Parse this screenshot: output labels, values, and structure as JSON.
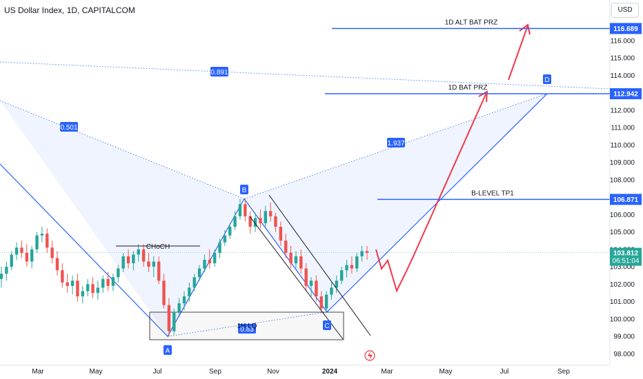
{
  "header": {
    "title": "US Dollar Index, 1D, CAPITALCOM",
    "currency": "USD"
  },
  "chart_data": {
    "type": "candlestick",
    "symbol": "US Dollar Index",
    "timeframe": "1D",
    "source": "CAPITALCOM",
    "x_ticks": [
      "Mar",
      "May",
      "Jul",
      "Sep",
      "Nov",
      "2024",
      "Mar",
      "May",
      "Jul",
      "Sep"
    ],
    "y_ticks": [
      "98.000",
      "99.000",
      "100.000",
      "101.000",
      "102.000",
      "103.000",
      "104.000",
      "105.000",
      "106.000",
      "107.000",
      "108.000",
      "109.000",
      "110.000",
      "111.000",
      "112.000",
      "113.000",
      "114.000",
      "115.000",
      "116.000"
    ],
    "ylim": [
      97.7,
      117.1
    ],
    "current_price": {
      "value": "103.812",
      "countdown": "06:51:04"
    },
    "levels": [
      {
        "name": "1D ALT BAT PRZ",
        "value": "116.689"
      },
      {
        "name": "1D BAT PRZ",
        "value": "112.942"
      },
      {
        "name": "B-LEVEL TP1",
        "value": "106.871"
      }
    ],
    "pattern_points": [
      {
        "label": "A",
        "value": 99.0
      },
      {
        "label": "B",
        "value": 106.9
      },
      {
        "label": "C",
        "value": 100.4
      },
      {
        "label": "D",
        "value": 112.94
      }
    ],
    "ratios": [
      "0.891",
      "0.501",
      "1.937",
      "0.83"
    ],
    "annotations": [
      "CHoCH",
      "1H LQ"
    ],
    "candles": [
      [
        102.3,
        103.0,
        101.8,
        102.6
      ],
      [
        102.6,
        103.3,
        102.2,
        103.0
      ],
      [
        103.0,
        103.9,
        102.8,
        103.7
      ],
      [
        103.7,
        104.4,
        103.4,
        104.1
      ],
      [
        104.1,
        104.5,
        103.5,
        103.8
      ],
      [
        103.8,
        104.3,
        103.0,
        103.3
      ],
      [
        103.3,
        104.2,
        102.9,
        104.0
      ],
      [
        104.0,
        105.0,
        103.8,
        104.8
      ],
      [
        104.8,
        105.3,
        104.4,
        104.9
      ],
      [
        104.9,
        105.2,
        103.8,
        104.1
      ],
      [
        104.1,
        104.5,
        103.2,
        103.5
      ],
      [
        103.5,
        103.9,
        102.5,
        102.8
      ],
      [
        102.8,
        103.2,
        101.8,
        102.1
      ],
      [
        102.1,
        102.6,
        101.5,
        101.9
      ],
      [
        101.9,
        102.5,
        101.4,
        102.2
      ],
      [
        102.2,
        102.6,
        101.0,
        101.3
      ],
      [
        101.3,
        101.9,
        100.9,
        101.6
      ],
      [
        101.6,
        102.3,
        101.3,
        102.0
      ],
      [
        102.0,
        102.4,
        101.2,
        101.5
      ],
      [
        101.5,
        102.2,
        101.1,
        101.8
      ],
      [
        101.8,
        102.5,
        101.5,
        102.3
      ],
      [
        102.3,
        102.7,
        101.6,
        101.9
      ],
      [
        101.9,
        102.6,
        101.6,
        102.4
      ],
      [
        102.4,
        103.1,
        102.1,
        102.9
      ],
      [
        102.9,
        103.8,
        102.7,
        103.6
      ],
      [
        103.6,
        104.0,
        102.9,
        103.2
      ],
      [
        103.2,
        103.9,
        102.8,
        103.7
      ],
      [
        103.7,
        104.3,
        103.3,
        104.0
      ],
      [
        104.0,
        104.3,
        103.0,
        103.3
      ],
      [
        103.3,
        103.8,
        102.7,
        103.0
      ],
      [
        103.0,
        103.6,
        102.4,
        103.3
      ],
      [
        103.3,
        103.6,
        102.0,
        102.2
      ],
      [
        102.2,
        102.6,
        100.6,
        100.8
      ],
      [
        100.8,
        101.2,
        99.0,
        99.3
      ],
      [
        99.3,
        100.6,
        99.1,
        100.4
      ],
      [
        100.4,
        101.2,
        100.1,
        100.9
      ],
      [
        100.9,
        101.6,
        100.5,
        101.3
      ],
      [
        101.3,
        102.1,
        101.0,
        101.8
      ],
      [
        101.8,
        102.6,
        101.6,
        102.4
      ],
      [
        102.4,
        103.1,
        102.2,
        102.9
      ],
      [
        102.9,
        103.7,
        102.7,
        103.4
      ],
      [
        103.4,
        104.0,
        102.9,
        103.2
      ],
      [
        103.2,
        104.0,
        103.0,
        103.8
      ],
      [
        103.8,
        104.6,
        103.5,
        104.4
      ],
      [
        104.4,
        105.1,
        104.2,
        104.8
      ],
      [
        104.8,
        105.5,
        104.6,
        105.3
      ],
      [
        105.3,
        106.2,
        105.1,
        105.9
      ],
      [
        105.9,
        106.9,
        105.7,
        106.6
      ],
      [
        106.6,
        106.9,
        105.6,
        105.9
      ],
      [
        105.9,
        106.2,
        104.9,
        105.3
      ],
      [
        105.3,
        106.1,
        105.0,
        105.8
      ],
      [
        105.8,
        106.3,
        105.2,
        105.5
      ],
      [
        105.5,
        106.5,
        105.3,
        106.2
      ],
      [
        106.2,
        106.7,
        105.6,
        105.9
      ],
      [
        105.9,
        106.1,
        105.0,
        105.3
      ],
      [
        105.3,
        105.6,
        104.2,
        104.5
      ],
      [
        104.5,
        104.9,
        103.5,
        103.8
      ],
      [
        103.8,
        104.2,
        102.9,
        103.2
      ],
      [
        103.2,
        103.9,
        102.9,
        103.6
      ],
      [
        103.6,
        104.0,
        102.6,
        102.9
      ],
      [
        102.9,
        103.2,
        101.6,
        101.9
      ],
      [
        101.9,
        102.4,
        101.3,
        102.2
      ],
      [
        102.2,
        102.5,
        101.0,
        101.3
      ],
      [
        101.3,
        101.6,
        100.4,
        100.6
      ],
      [
        100.6,
        101.6,
        100.4,
        101.4
      ],
      [
        101.4,
        102.1,
        101.1,
        101.8
      ],
      [
        101.8,
        102.5,
        101.5,
        102.2
      ],
      [
        102.2,
        103.0,
        102.0,
        102.8
      ],
      [
        102.8,
        103.4,
        102.4,
        103.1
      ],
      [
        103.1,
        103.6,
        102.6,
        102.9
      ],
      [
        102.9,
        103.8,
        102.7,
        103.6
      ],
      [
        103.6,
        104.2,
        103.3,
        103.9
      ],
      [
        103.9,
        104.2,
        103.4,
        103.8
      ]
    ]
  }
}
